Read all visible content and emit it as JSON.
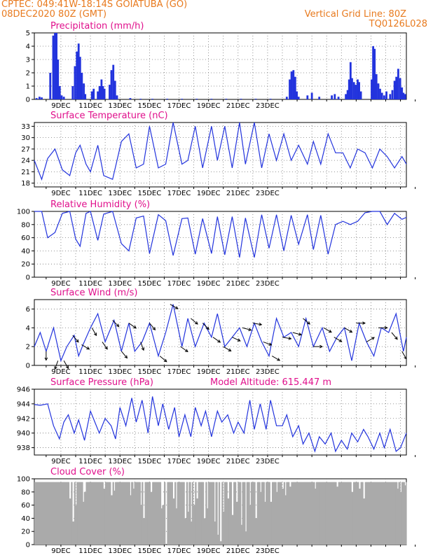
{
  "header": {
    "line1_left": "CPTEC:   049:41W-18:14S   GOIATUBA (GO)",
    "line2_left": "08DEC2020 80Z (GMT)",
    "line2_right": "Vertical Grid Line: 80Z",
    "line3_right": "TQ0126L028"
  },
  "colors": {
    "header": "#e87a1e",
    "title": "#e0108c",
    "series": "#2233dd",
    "cloud": "#aaaaaa"
  },
  "chart_data": [
    {
      "type": "bar",
      "title": "Precipitation (mm/h)",
      "ylim": [
        0,
        5
      ],
      "yticks": [
        "0",
        "1",
        "2",
        "3",
        "4",
        "5"
      ],
      "xticks": [
        "9DEC",
        "11DEC",
        "13DEC",
        "15DEC",
        "17DEC",
        "19DEC",
        "21DEC",
        "23DEC"
      ],
      "bars": [
        {
          "t": 0.15,
          "v": 0.1
        },
        {
          "t": 0.35,
          "v": 0.2
        },
        {
          "t": 0.5,
          "v": 0.15
        },
        {
          "t": 1.08,
          "v": 2.0
        },
        {
          "t": 1.28,
          "v": 4.8
        },
        {
          "t": 1.4,
          "v": 5.0
        },
        {
          "t": 1.5,
          "v": 5.0
        },
        {
          "t": 1.6,
          "v": 3.0
        },
        {
          "t": 1.72,
          "v": 1.0
        },
        {
          "t": 1.85,
          "v": 0.3
        },
        {
          "t": 2.0,
          "v": 0.2
        },
        {
          "t": 2.6,
          "v": 1.0
        },
        {
          "t": 2.75,
          "v": 2.5
        },
        {
          "t": 2.88,
          "v": 3.6
        },
        {
          "t": 3.0,
          "v": 4.2
        },
        {
          "t": 3.1,
          "v": 3.2
        },
        {
          "t": 3.22,
          "v": 2.0
        },
        {
          "t": 3.35,
          "v": 1.2
        },
        {
          "t": 3.45,
          "v": 0.4
        },
        {
          "t": 3.9,
          "v": 0.6
        },
        {
          "t": 4.02,
          "v": 0.8
        },
        {
          "t": 4.3,
          "v": 0.6
        },
        {
          "t": 4.42,
          "v": 1.0
        },
        {
          "t": 4.55,
          "v": 1.5
        },
        {
          "t": 4.65,
          "v": 1.0
        },
        {
          "t": 4.75,
          "v": 0.8
        },
        {
          "t": 5.1,
          "v": 1.1
        },
        {
          "t": 5.22,
          "v": 2.2
        },
        {
          "t": 5.35,
          "v": 2.6
        },
        {
          "t": 5.47,
          "v": 1.4
        },
        {
          "t": 5.6,
          "v": 0.3
        },
        {
          "t": 6.5,
          "v": 0.1
        },
        {
          "t": 7.2,
          "v": 0.05
        },
        {
          "t": 8.0,
          "v": 0.05
        },
        {
          "t": 9.0,
          "v": 0.05
        },
        {
          "t": 10.0,
          "v": 0.05
        },
        {
          "t": 11.0,
          "v": 0.05
        },
        {
          "t": 12.0,
          "v": 0.05
        },
        {
          "t": 13.0,
          "v": 0.05
        },
        {
          "t": 14.0,
          "v": 0.05
        },
        {
          "t": 15.0,
          "v": 0.05
        },
        {
          "t": 16.0,
          "v": 0.05
        },
        {
          "t": 17.1,
          "v": 0.2
        },
        {
          "t": 17.3,
          "v": 1.5
        },
        {
          "t": 17.42,
          "v": 2.1
        },
        {
          "t": 17.55,
          "v": 2.2
        },
        {
          "t": 17.67,
          "v": 1.7
        },
        {
          "t": 17.78,
          "v": 0.6
        },
        {
          "t": 17.9,
          "v": 0.2
        },
        {
          "t": 18.5,
          "v": 0.3
        },
        {
          "t": 18.8,
          "v": 0.5
        },
        {
          "t": 19.3,
          "v": 0.2
        },
        {
          "t": 20.15,
          "v": 0.3
        },
        {
          "t": 20.35,
          "v": 0.4
        },
        {
          "t": 20.6,
          "v": 0.2
        },
        {
          "t": 21.1,
          "v": 0.4
        },
        {
          "t": 21.22,
          "v": 0.7
        },
        {
          "t": 21.32,
          "v": 1.5
        },
        {
          "t": 21.42,
          "v": 2.8
        },
        {
          "t": 21.52,
          "v": 1.6
        },
        {
          "t": 21.65,
          "v": 1.3
        },
        {
          "t": 21.78,
          "v": 1.1
        },
        {
          "t": 21.9,
          "v": 1.5
        },
        {
          "t": 22.0,
          "v": 1.3
        },
        {
          "t": 22.12,
          "v": 0.6
        },
        {
          "t": 22.85,
          "v": 1.5
        },
        {
          "t": 22.95,
          "v": 4.0
        },
        {
          "t": 23.05,
          "v": 3.8
        },
        {
          "t": 23.17,
          "v": 1.9
        },
        {
          "t": 23.3,
          "v": 1.2
        },
        {
          "t": 23.42,
          "v": 0.8
        },
        {
          "t": 23.55,
          "v": 0.5
        },
        {
          "t": 23.7,
          "v": 0.3
        },
        {
          "t": 23.85,
          "v": 0.6
        },
        {
          "t": 24.1,
          "v": 0.4
        },
        {
          "t": 24.25,
          "v": 0.7
        },
        {
          "t": 24.4,
          "v": 1.4
        },
        {
          "t": 24.52,
          "v": 1.7
        },
        {
          "t": 24.65,
          "v": 2.3
        },
        {
          "t": 24.78,
          "v": 1.6
        },
        {
          "t": 24.9,
          "v": 0.9
        },
        {
          "t": 25.0,
          "v": 0.5
        },
        {
          "t": 25.12,
          "v": 0.4
        }
      ]
    },
    {
      "type": "line",
      "title": "Surface Temperature (nC)",
      "ylim": [
        17,
        34
      ],
      "yticks": [
        "18",
        "21",
        "24",
        "27",
        "30",
        "33"
      ],
      "xticks": [
        "9DEC",
        "11DEC",
        "13DEC",
        "15DEC",
        "17DEC",
        "19DEC",
        "21DEC",
        "23DEC"
      ],
      "x": [
        0,
        0.5,
        0.9,
        1.4,
        1.9,
        2.4,
        2.8,
        3.1,
        3.5,
        3.8,
        4.3,
        4.7,
        5.3,
        5.9,
        6.4,
        6.9,
        7.4,
        7.8,
        8.4,
        8.9,
        9.4,
        10.0,
        10.4,
        10.9,
        11.4,
        12.0,
        12.4,
        12.9,
        13.4,
        13.9,
        14.3,
        14.9,
        15.4,
        15.9,
        16.4,
        16.9,
        17.4,
        17.9,
        18.5,
        18.9,
        19.4,
        19.9,
        20.4,
        20.9,
        21.4,
        21.9,
        22.4,
        22.9,
        23.4,
        23.9,
        24.4,
        24.9,
        25.2
      ],
      "values": [
        24,
        19,
        24.5,
        27,
        21.5,
        20,
        26,
        28,
        23,
        21,
        28,
        20,
        19,
        29,
        31,
        22,
        23,
        33,
        22,
        23,
        34,
        23,
        24,
        33,
        22,
        33,
        24,
        33,
        22,
        34,
        23,
        34,
        22,
        31,
        24,
        31,
        24,
        28,
        23,
        29,
        23,
        31,
        26,
        26,
        22,
        27,
        26,
        22,
        27,
        25,
        22,
        25,
        23
      ]
    },
    {
      "type": "line",
      "title": "Relative Humidity (%)",
      "ylim": [
        0,
        100
      ],
      "yticks": [
        "0",
        "20",
        "40",
        "60",
        "80",
        "100"
      ],
      "xticks": [
        "9DEC",
        "11DEC",
        "13DEC",
        "15DEC",
        "17DEC",
        "19DEC",
        "21DEC",
        "23DEC"
      ],
      "x": [
        0,
        0.5,
        0.9,
        1.4,
        1.9,
        2.4,
        2.8,
        3.1,
        3.5,
        3.8,
        4.3,
        4.7,
        5.3,
        5.9,
        6.4,
        6.9,
        7.4,
        7.8,
        8.4,
        8.9,
        9.4,
        10.0,
        10.4,
        10.9,
        11.4,
        12.0,
        12.4,
        12.9,
        13.4,
        13.9,
        14.3,
        14.9,
        15.4,
        15.9,
        16.4,
        16.9,
        17.4,
        17.9,
        18.5,
        18.9,
        19.4,
        19.9,
        20.4,
        20.9,
        21.4,
        21.9,
        22.4,
        22.9,
        23.4,
        23.9,
        24.4,
        24.9,
        25.2
      ],
      "values": [
        100,
        100,
        60,
        68,
        97,
        100,
        58,
        47,
        97,
        100,
        56,
        96,
        100,
        51,
        40,
        90,
        93,
        36,
        95,
        86,
        33,
        89,
        90,
        35,
        89,
        36,
        92,
        34,
        92,
        30,
        90,
        30,
        95,
        44,
        95,
        40,
        94,
        50,
        95,
        42,
        94,
        35,
        80,
        85,
        80,
        85,
        98,
        100,
        100,
        80,
        97,
        88,
        91
      ]
    },
    {
      "type": "line",
      "title": "Surface Wind (m/s)",
      "ylim": [
        0,
        7
      ],
      "yticks": [
        "0",
        "2",
        "4",
        "6"
      ],
      "xticks": [
        "9DEC",
        "11DEC",
        "13DEC",
        "15DEC",
        "17DEC",
        "19DEC",
        "21DEC",
        "23DEC"
      ],
      "x": [
        0,
        0.4,
        0.8,
        1.3,
        1.8,
        2.2,
        2.7,
        3.0,
        3.3,
        3.8,
        4.3,
        4.8,
        5.4,
        5.9,
        6.4,
        6.8,
        7.3,
        7.8,
        8.4,
        8.9,
        9.4,
        10.0,
        10.4,
        10.9,
        11.5,
        12.0,
        12.4,
        12.9,
        13.4,
        13.9,
        14.4,
        14.9,
        15.4,
        15.9,
        16.4,
        16.9,
        17.4,
        17.9,
        18.4,
        18.9,
        19.5,
        20.0,
        20.5,
        21.0,
        21.5,
        22.0,
        22.5,
        23.0,
        23.5,
        24.0,
        24.5,
        25.0,
        25.2
      ],
      "values": [
        2,
        3.5,
        1.5,
        4,
        0.5,
        2,
        3.2,
        1.0,
        2.2,
        4.0,
        5.5,
        2.5,
        4.8,
        1.5,
        4.5,
        1.5,
        2.5,
        4.5,
        1.0,
        3.5,
        6.5,
        2.0,
        5.0,
        2.0,
        4.5,
        3.0,
        5.5,
        2.0,
        3.0,
        4.0,
        2.0,
        4.5,
        2.5,
        1.0,
        5.0,
        3.0,
        3.5,
        2.0,
        5.0,
        2.0,
        4.0,
        1.5,
        3.0,
        4.0,
        0.5,
        4.5,
        2.5,
        1.0,
        4.0,
        3.5,
        5.5,
        1.5,
        3.0
      ],
      "arrows": [
        {
          "t": 0.8,
          "dir": 0
        },
        {
          "t": 1.6,
          "dir": 20
        },
        {
          "t": 2.0,
          "dir": -30
        },
        {
          "t": 2.6,
          "dir": -40
        },
        {
          "t": 3.2,
          "dir": -60
        },
        {
          "t": 3.9,
          "dir": -30
        },
        {
          "t": 4.6,
          "dir": -35
        },
        {
          "t": 5.3,
          "dir": -45
        },
        {
          "t": 5.9,
          "dir": -40
        },
        {
          "t": 6.4,
          "dir": -55
        },
        {
          "t": 7.2,
          "dir": -20
        },
        {
          "t": 7.8,
          "dir": -40
        },
        {
          "t": 8.5,
          "dir": -50
        },
        {
          "t": 9.2,
          "dir": -60
        },
        {
          "t": 9.9,
          "dir": -55
        },
        {
          "t": 10.6,
          "dir": -50
        },
        {
          "t": 11.4,
          "dir": -45
        },
        {
          "t": 12.1,
          "dir": -55
        },
        {
          "t": 12.8,
          "dir": -60
        },
        {
          "t": 13.4,
          "dir": -65
        },
        {
          "t": 14.1,
          "dir": -75
        },
        {
          "t": 14.8,
          "dir": -80
        },
        {
          "t": 15.5,
          "dir": -70
        },
        {
          "t": 16.1,
          "dir": -60
        },
        {
          "t": 16.8,
          "dir": -80
        },
        {
          "t": 17.5,
          "dir": -75
        },
        {
          "t": 18.2,
          "dir": -50
        },
        {
          "t": 18.9,
          "dir": -90
        },
        {
          "t": 19.6,
          "dir": -60
        },
        {
          "t": 20.3,
          "dir": -60
        },
        {
          "t": 21.0,
          "dir": -60
        },
        {
          "t": 21.8,
          "dir": -90
        },
        {
          "t": 22.5,
          "dir": -120
        },
        {
          "t": 23.3,
          "dir": -90
        },
        {
          "t": 24.2,
          "dir": -40
        },
        {
          "t": 24.9,
          "dir": -30
        }
      ]
    },
    {
      "type": "line",
      "title": "Surface Pressure (hPa)",
      "annotation": "Model Altitude: 615.447 m",
      "ylim": [
        937,
        946
      ],
      "yticks": [
        "938",
        "940",
        "942",
        "944",
        "946"
      ],
      "xticks": [
        "9DEC",
        "11DEC",
        "13DEC",
        "15DEC",
        "17DEC",
        "19DEC",
        "21DEC",
        "23DEC"
      ],
      "x": [
        0,
        0.4,
        0.9,
        1.3,
        1.7,
        2.0,
        2.3,
        2.7,
        3.0,
        3.4,
        3.8,
        4.1,
        4.4,
        4.8,
        5.2,
        5.5,
        5.8,
        6.2,
        6.6,
        6.9,
        7.3,
        7.7,
        8.0,
        8.4,
        8.7,
        9.1,
        9.5,
        9.8,
        10.2,
        10.6,
        10.9,
        11.3,
        11.6,
        12.0,
        12.4,
        12.7,
        13.1,
        13.5,
        13.8,
        14.2,
        14.6,
        14.9,
        15.3,
        15.7,
        16.0,
        16.4,
        16.8,
        17.1,
        17.5,
        17.9,
        18.2,
        18.6,
        19.0,
        19.3,
        19.7,
        20.1,
        20.4,
        20.8,
        21.2,
        21.5,
        21.9,
        22.3,
        22.6,
        23.0,
        23.4,
        23.7,
        24.1,
        24.5,
        24.8,
        25.2
      ],
      "values": [
        943.9,
        943.8,
        944.0,
        941.0,
        939.2,
        941.5,
        942.5,
        940.0,
        941.8,
        939.0,
        943.0,
        941.5,
        940.0,
        942.0,
        941.0,
        939.2,
        943.5,
        941.0,
        944.8,
        941.5,
        944.5,
        940.0,
        945.0,
        941.0,
        944.0,
        940.5,
        943.5,
        939.5,
        942.5,
        939.5,
        943.5,
        941.0,
        943.0,
        939.5,
        943.0,
        941.5,
        942.5,
        940.0,
        941.5,
        940.0,
        944.5,
        940.5,
        944.0,
        940.5,
        944.5,
        941.0,
        941.0,
        942.5,
        939.5,
        941.0,
        938.5,
        940.0,
        937.5,
        939.5,
        938.5,
        940.0,
        937.5,
        939.0,
        937.8,
        940.0,
        938.8,
        940.5,
        939.5,
        937.8,
        940.0,
        938.0,
        940.5,
        937.5,
        938.0,
        940.0
      ]
    },
    {
      "type": "bar",
      "title": "Cloud Cover (%)",
      "ylim": [
        0,
        100
      ],
      "yticks": [
        "0",
        "20",
        "40",
        "60",
        "80",
        "100"
      ],
      "xticks": [
        "9DEC",
        "11DEC",
        "13DEC",
        "15DEC",
        "17DEC",
        "19DEC",
        "21DEC",
        "23DEC"
      ],
      "base": 95,
      "dips": [
        {
          "t": 2.4,
          "v": 70
        },
        {
          "t": 2.6,
          "v": 35
        },
        {
          "t": 2.8,
          "v": 60
        },
        {
          "t": 3.3,
          "v": 65
        },
        {
          "t": 3.4,
          "v": 80
        },
        {
          "t": 4.7,
          "v": 85
        },
        {
          "t": 5.2,
          "v": 75
        },
        {
          "t": 5.4,
          "v": 82
        },
        {
          "t": 6.5,
          "v": 75
        },
        {
          "t": 6.7,
          "v": 85
        },
        {
          "t": 7.2,
          "v": 60
        },
        {
          "t": 7.4,
          "v": 40
        },
        {
          "t": 7.9,
          "v": 80
        },
        {
          "t": 8.6,
          "v": 55
        },
        {
          "t": 8.7,
          "v": 60
        },
        {
          "t": 8.9,
          "v": 0
        },
        {
          "t": 9.4,
          "v": 70
        },
        {
          "t": 9.6,
          "v": 55
        },
        {
          "t": 10.2,
          "v": 40
        },
        {
          "t": 10.4,
          "v": 50
        },
        {
          "t": 10.6,
          "v": 35
        },
        {
          "t": 10.8,
          "v": 60
        },
        {
          "t": 11.0,
          "v": 70
        },
        {
          "t": 11.5,
          "v": 40
        },
        {
          "t": 11.7,
          "v": 55
        },
        {
          "t": 12.2,
          "v": 35
        },
        {
          "t": 12.4,
          "v": 15
        },
        {
          "t": 12.6,
          "v": 5
        },
        {
          "t": 12.8,
          "v": 50
        },
        {
          "t": 13.1,
          "v": 70
        },
        {
          "t": 13.4,
          "v": 45
        },
        {
          "t": 13.7,
          "v": 65
        },
        {
          "t": 14.0,
          "v": 30
        },
        {
          "t": 14.3,
          "v": 20
        },
        {
          "t": 14.6,
          "v": 60
        },
        {
          "t": 15.0,
          "v": 40
        },
        {
          "t": 15.3,
          "v": 80
        },
        {
          "t": 15.6,
          "v": 65
        },
        {
          "t": 16.0,
          "v": 65
        },
        {
          "t": 16.4,
          "v": 80
        },
        {
          "t": 16.8,
          "v": 85
        },
        {
          "t": 17.0,
          "v": 75
        },
        {
          "t": 17.3,
          "v": 88
        },
        {
          "t": 19.0,
          "v": 85
        },
        {
          "t": 20.5,
          "v": 88
        },
        {
          "t": 21.5,
          "v": 80
        },
        {
          "t": 22.0,
          "v": 85
        },
        {
          "t": 22.3,
          "v": 70
        },
        {
          "t": 24.6,
          "v": 85
        },
        {
          "t": 24.8,
          "v": 80
        },
        {
          "t": 25.1,
          "v": 90
        }
      ]
    }
  ]
}
